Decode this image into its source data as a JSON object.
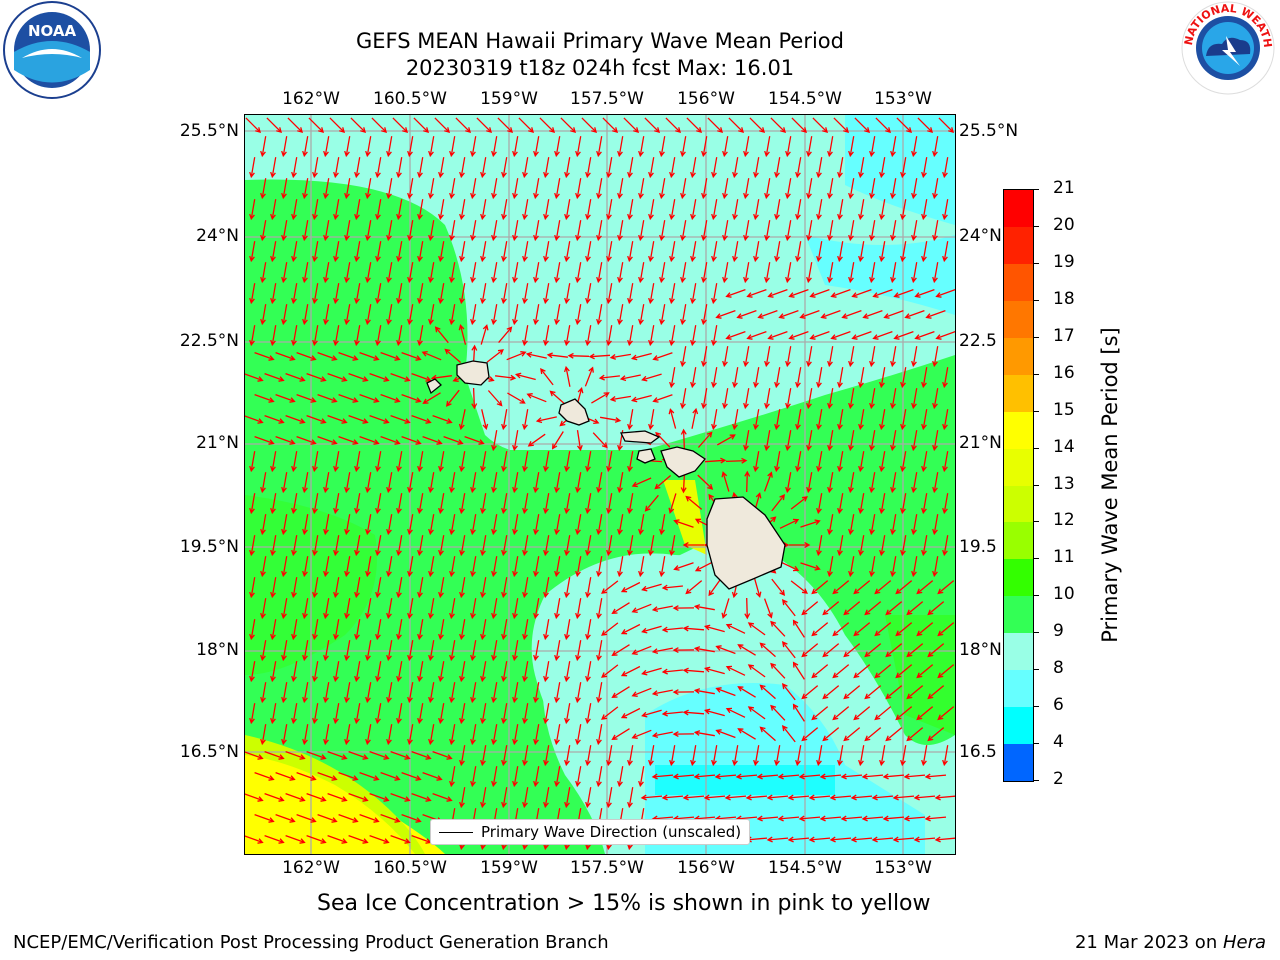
{
  "title": {
    "line1": "GEFS MEAN Hawaii Primary Wave Mean Period",
    "line2": "20230319 t18z 024h fcst   Max: 16.01"
  },
  "map": {
    "lon_labels": [
      "162°W",
      "160.5°W",
      "159°W",
      "157.5°W",
      "156°W",
      "154.5°W",
      "153°W"
    ],
    "lat_labels": [
      "25.5°N",
      "24°N",
      "22.5°N",
      "21°N",
      "19.5°N",
      "18°N",
      "16.5°N"
    ],
    "lat_labels_right": [
      "25.5°N",
      "24°N",
      "22.5",
      "21°N",
      "19.5",
      "18°N",
      "16.5"
    ],
    "lon_range": [
      -163,
      -152.2
    ],
    "lat_range": [
      15.4,
      25.8
    ],
    "land_color": "#efe9dc",
    "arrow_color": "#ff0000",
    "gridline_color": "#aaaaaa"
  },
  "legend": {
    "label": "Primary Wave Direction (unscaled)"
  },
  "colorbar": {
    "title": "Primary Wave Mean Period [s]",
    "ticks": [
      "21",
      "20",
      "19",
      "18",
      "17",
      "16",
      "15",
      "14",
      "13",
      "12",
      "11",
      "10",
      "9",
      "8",
      "6",
      "4",
      "2"
    ],
    "colors": [
      "#ff0000",
      "#ff2200",
      "#ff5500",
      "#ff7700",
      "#ff9900",
      "#ffc000",
      "#ffff00",
      "#e8ff00",
      "#ccff00",
      "#99ff00",
      "#33ff00",
      "#33ff55",
      "#99ffe6",
      "#66ffff",
      "#00ffff",
      "#0066ff",
      "#0000ff"
    ]
  },
  "caption": "Sea Ice Concentration > 15% is shown in pink to yellow",
  "footer": {
    "left": "NCEP/EMC/Verification Post Processing Product Generation Branch",
    "right_date": "21 Mar 2023 on ",
    "right_machine": "Hera"
  },
  "logos": {
    "noaa": "NOAA",
    "nws": "NATIONAL WEATHER SERVICE"
  }
}
